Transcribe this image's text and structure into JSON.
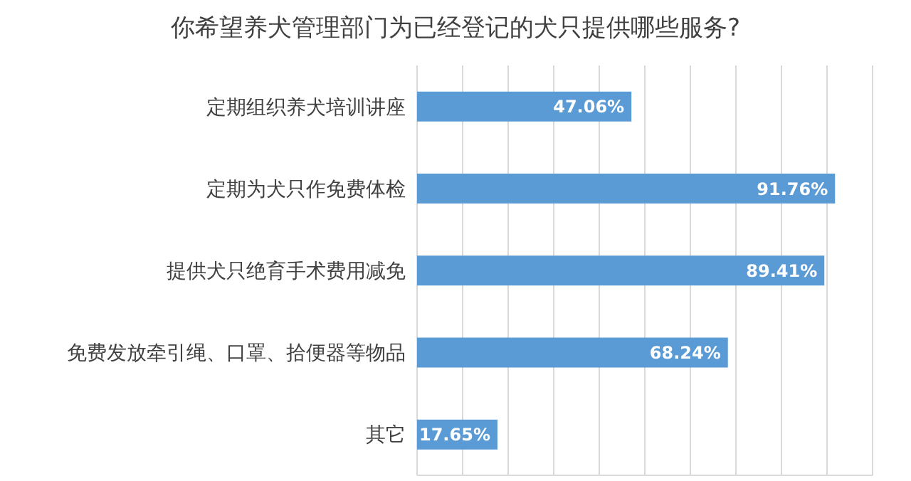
{
  "chart_data": {
    "type": "bar",
    "orientation": "horizontal",
    "title": "你希望养犬管理部门为已经登记的犬只提供哪些服务?",
    "categories": [
      "定期组织养犬培训讲座",
      "定期为犬只作免费体检",
      "提供犬只绝育手术费用减免",
      "免费发放牵引绳、口罩、拾便器等物品",
      "其它"
    ],
    "values": [
      47.06,
      91.76,
      89.41,
      68.24,
      17.65
    ],
    "value_labels": [
      "47.06%",
      "91.76%",
      "89.41%",
      "68.24%",
      "17.65%"
    ],
    "color": "#5b9bd5",
    "xlim": [
      0,
      100
    ],
    "grid": "x",
    "tick_labels": "y",
    "legend": false
  }
}
